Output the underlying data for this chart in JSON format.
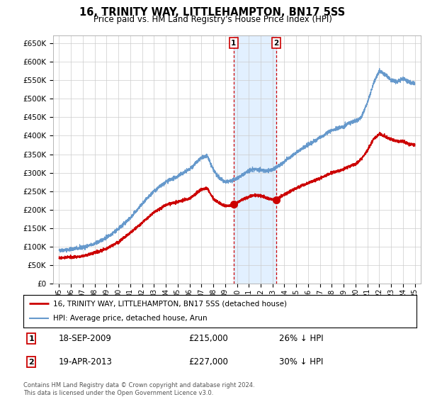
{
  "title": "16, TRINITY WAY, LITTLEHAMPTON, BN17 5SS",
  "subtitle": "Price paid vs. HM Land Registry's House Price Index (HPI)",
  "legend_line1": "16, TRINITY WAY, LITTLEHAMPTON, BN17 5SS (detached house)",
  "legend_line2": "HPI: Average price, detached house, Arun",
  "annotation1_date": "18-SEP-2009",
  "annotation1_price": "£215,000",
  "annotation1_hpi": "26% ↓ HPI",
  "annotation1_year": 2009.72,
  "annotation1_value": 215000,
  "annotation2_date": "19-APR-2013",
  "annotation2_price": "£227,000",
  "annotation2_hpi": "30% ↓ HPI",
  "annotation2_year": 2013.3,
  "annotation2_value": 227000,
  "footer": "Contains HM Land Registry data © Crown copyright and database right 2024.\nThis data is licensed under the Open Government Licence v3.0.",
  "ylim": [
    0,
    670000
  ],
  "yticks": [
    0,
    50000,
    100000,
    150000,
    200000,
    250000,
    300000,
    350000,
    400000,
    450000,
    500000,
    550000,
    600000,
    650000
  ],
  "xlim_start": 1994.5,
  "xlim_end": 2025.5,
  "line_color_red": "#cc0000",
  "line_color_blue": "#6699cc",
  "annotation_box_color": "#cc0000",
  "shaded_region_color": "#ddeeff",
  "background_color": "#ffffff",
  "grid_color": "#cccccc",
  "hpi_key_years": [
    1995,
    1996,
    1997,
    1998,
    1999,
    2000,
    2001,
    2002,
    2003,
    2004,
    2005,
    2006,
    2007,
    2007.5,
    2008,
    2008.5,
    2009,
    2009.5,
    2010,
    2010.5,
    2011,
    2011.5,
    2012,
    2012.5,
    2013,
    2013.5,
    2014,
    2015,
    2016,
    2017,
    2018,
    2019,
    2019.5,
    2020,
    2020.5,
    2021,
    2021.5,
    2022,
    2022.5,
    2023,
    2023.5,
    2024,
    2024.5,
    2025
  ],
  "hpi_key_vals": [
    90000,
    93000,
    98000,
    108000,
    125000,
    148000,
    178000,
    215000,
    250000,
    275000,
    290000,
    310000,
    340000,
    345000,
    310000,
    285000,
    275000,
    278000,
    285000,
    295000,
    305000,
    310000,
    308000,
    305000,
    308000,
    318000,
    330000,
    355000,
    375000,
    395000,
    415000,
    425000,
    435000,
    440000,
    450000,
    490000,
    540000,
    575000,
    565000,
    550000,
    545000,
    555000,
    545000,
    540000
  ],
  "pp_key_years": [
    1995,
    1996,
    1997,
    1998,
    1999,
    2000,
    2001,
    2002,
    2003,
    2004,
    2005,
    2006,
    2007,
    2007.5,
    2008,
    2008.5,
    2009,
    2009.5,
    2009.72,
    2010,
    2010.5,
    2011,
    2011.5,
    2012,
    2012.5,
    2013,
    2013.3,
    2013.5,
    2014,
    2015,
    2016,
    2017,
    2018,
    2019,
    2019.5,
    2020,
    2020.5,
    2021,
    2021.5,
    2022,
    2022.5,
    2023,
    2023.5,
    2024,
    2024.5,
    2025
  ],
  "pp_key_vals": [
    70000,
    72000,
    75000,
    84000,
    95000,
    113000,
    138000,
    165000,
    193000,
    213000,
    222000,
    230000,
    255000,
    258000,
    230000,
    218000,
    210000,
    212000,
    215000,
    220000,
    228000,
    235000,
    240000,
    238000,
    232000,
    228000,
    227000,
    232000,
    242000,
    258000,
    272000,
    285000,
    300000,
    310000,
    318000,
    323000,
    338000,
    360000,
    390000,
    405000,
    398000,
    390000,
    385000,
    385000,
    378000,
    375000
  ]
}
